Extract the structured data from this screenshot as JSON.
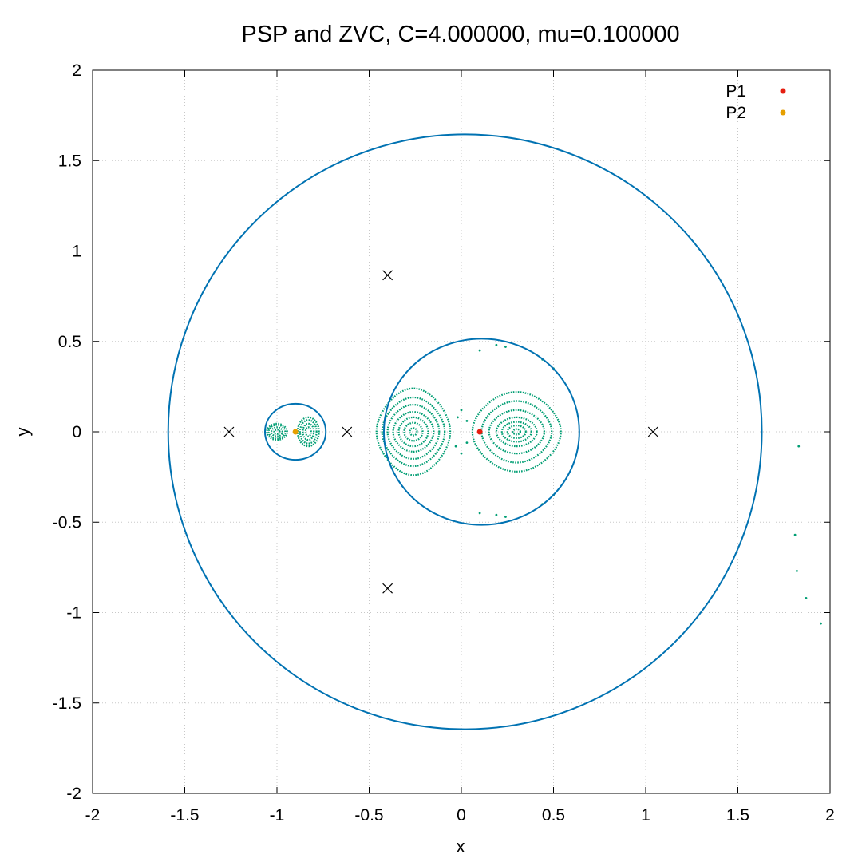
{
  "chart_data": {
    "type": "scatter",
    "title": "PSP and ZVC, C=4.000000, mu=0.100000",
    "xlabel": "x",
    "ylabel": "y",
    "xlim": [
      -2,
      2
    ],
    "ylim": [
      -2,
      2
    ],
    "x_ticks": [
      -2,
      -1.5,
      -1,
      -0.5,
      0,
      0.5,
      1,
      1.5,
      2
    ],
    "y_ticks": [
      -2,
      -1.5,
      -1,
      -0.5,
      0,
      0.5,
      1,
      1.5,
      2
    ],
    "x_tick_labels": [
      "-2",
      "-1.5",
      "-1",
      "-0.5",
      "0",
      "0.5",
      "1",
      "1.5",
      "2"
    ],
    "y_tick_labels": [
      "-2",
      "-1.5",
      "-1",
      "-0.5",
      "0",
      "0.5",
      "1",
      "1.5",
      "2"
    ],
    "grid": true,
    "legend_position": "top-right",
    "colors": {
      "zvc": "#0072b2",
      "psp": "#009e73",
      "p1": "#e51e10",
      "p2": "#e69f00",
      "lagrange": "#000000"
    },
    "zvc_curves": [
      {
        "shape": "outer-circle",
        "center": [
          0.02,
          0
        ],
        "radius_x": 1.61,
        "radius_y": 1.645
      },
      {
        "shape": "inner-oval",
        "center": [
          0.11,
          0
        ],
        "radius_x": 0.53,
        "radius_y": 0.515
      },
      {
        "shape": "small-oval",
        "center": [
          -0.9,
          0
        ],
        "radius_x": 0.165,
        "radius_y": 0.155
      }
    ],
    "lagrange_points": [
      {
        "x": -1.26,
        "y": 0
      },
      {
        "x": -0.62,
        "y": 0
      },
      {
        "x": 1.04,
        "y": 0
      },
      {
        "x": -0.4,
        "y": 0.866
      },
      {
        "x": -0.4,
        "y": -0.866
      }
    ],
    "psp_islands": [
      {
        "cx": -1.0,
        "cy": 0,
        "rx": [
          0.015,
          0.03,
          0.045,
          0.055
        ],
        "ry": [
          0.012,
          0.025,
          0.038,
          0.045
        ],
        "pinch": 0.1
      },
      {
        "cx": -0.83,
        "cy": 0,
        "rx": [
          0.015,
          0.03,
          0.045,
          0.058
        ],
        "ry": [
          0.025,
          0.045,
          0.065,
          0.08
        ],
        "pinch": 0.0
      },
      {
        "cx": -0.26,
        "cy": 0,
        "rx": [
          0.02,
          0.05,
          0.08,
          0.11,
          0.14,
          0.17,
          0.2
        ],
        "ry": [
          0.02,
          0.05,
          0.08,
          0.11,
          0.15,
          0.19,
          0.24
        ],
        "pinch": 0.25
      },
      {
        "cx": 0.3,
        "cy": 0,
        "rx": [
          0.02,
          0.05,
          0.08,
          0.11,
          0.15,
          0.19,
          0.24
        ],
        "ry": [
          0.015,
          0.035,
          0.055,
          0.08,
          0.12,
          0.17,
          0.22
        ],
        "pinch": 0.2
      }
    ],
    "psp_stray_points": [
      {
        "x": 1.83,
        "y": -0.08
      },
      {
        "x": 1.81,
        "y": -0.57
      },
      {
        "x": 1.82,
        "y": -0.77
      },
      {
        "x": 1.87,
        "y": -0.92
      },
      {
        "x": 1.95,
        "y": -1.06
      },
      {
        "x": 0.1,
        "y": 0.45
      },
      {
        "x": 0.19,
        "y": 0.48
      },
      {
        "x": 0.24,
        "y": 0.47
      },
      {
        "x": 0.19,
        "y": -0.46
      },
      {
        "x": 0.24,
        "y": -0.47
      },
      {
        "x": 0.1,
        "y": -0.45
      },
      {
        "x": 0.44,
        "y": 0.4
      },
      {
        "x": 0.5,
        "y": 0.35
      },
      {
        "x": 0.44,
        "y": -0.4
      },
      {
        "x": 0.5,
        "y": -0.35
      },
      {
        "x": -0.02,
        "y": 0.08
      },
      {
        "x": -0.03,
        "y": -0.08
      },
      {
        "x": 0.0,
        "y": 0.12
      },
      {
        "x": 0.0,
        "y": -0.12
      },
      {
        "x": 0.03,
        "y": 0.06
      },
      {
        "x": 0.03,
        "y": -0.06
      }
    ],
    "series": [
      {
        "name": "P1",
        "x": 0.1,
        "y": 0
      },
      {
        "name": "P2",
        "x": -0.9,
        "y": 0
      }
    ]
  }
}
